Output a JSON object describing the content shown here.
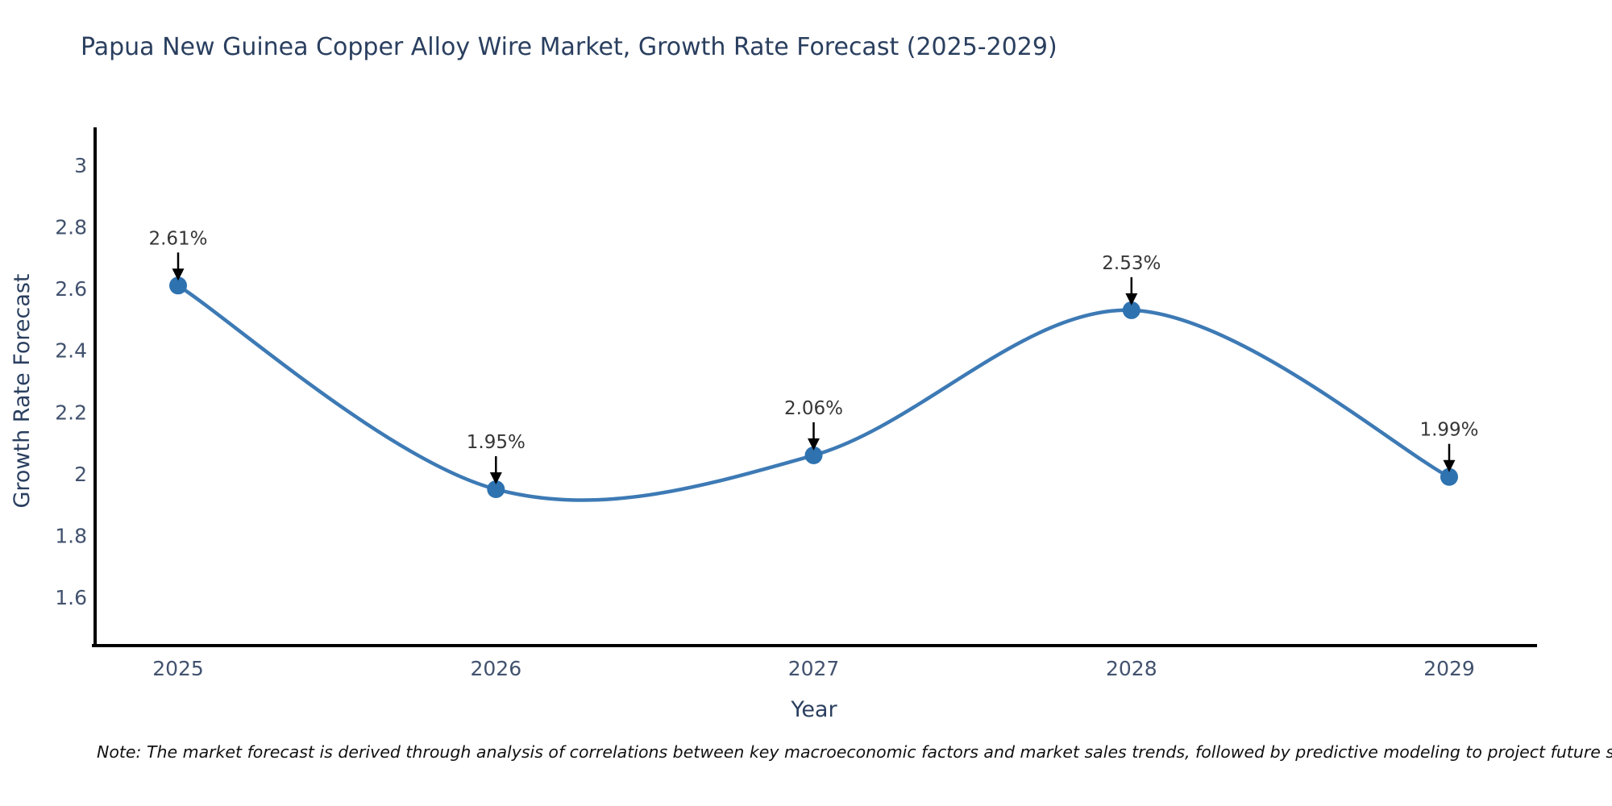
{
  "title": "Papua New Guinea Copper Alloy Wire Market, Growth Rate Forecast (2025-2029)",
  "note": "Note: The market forecast is derived through analysis of correlations between key macroeconomic factors and market sales trends, followed by predictive modeling to project future sales",
  "chart_data": {
    "type": "line",
    "line_shape": "spline",
    "title": "Papua New Guinea Copper Alloy Wire Market, Growth Rate Forecast (2025-2029)",
    "xlabel": "Year",
    "ylabel": "Growth Rate Forecast",
    "categories": [
      "2025",
      "2026",
      "2027",
      "2028",
      "2029"
    ],
    "series": [
      {
        "name": "Growth Rate Forecast",
        "values": [
          2.61,
          1.95,
          2.06,
          2.53,
          1.99
        ]
      }
    ],
    "point_labels": [
      "2.61%",
      "1.95%",
      "2.06%",
      "2.53%",
      "1.99%"
    ],
    "yticks": [
      1.6,
      1.8,
      2,
      2.2,
      2.4,
      2.6,
      2.8,
      3
    ],
    "ylim": [
      1.45,
      3.1
    ],
    "grid": false,
    "legend": "none",
    "annotations_style": "value-label-with-down-arrow",
    "colors": {
      "line": "#3d7ab5",
      "marker": "#2e72b0",
      "arrow": "#000000",
      "axis": "#000000",
      "title_text": "#2a3f5f",
      "tick_text": "#42526e"
    }
  }
}
